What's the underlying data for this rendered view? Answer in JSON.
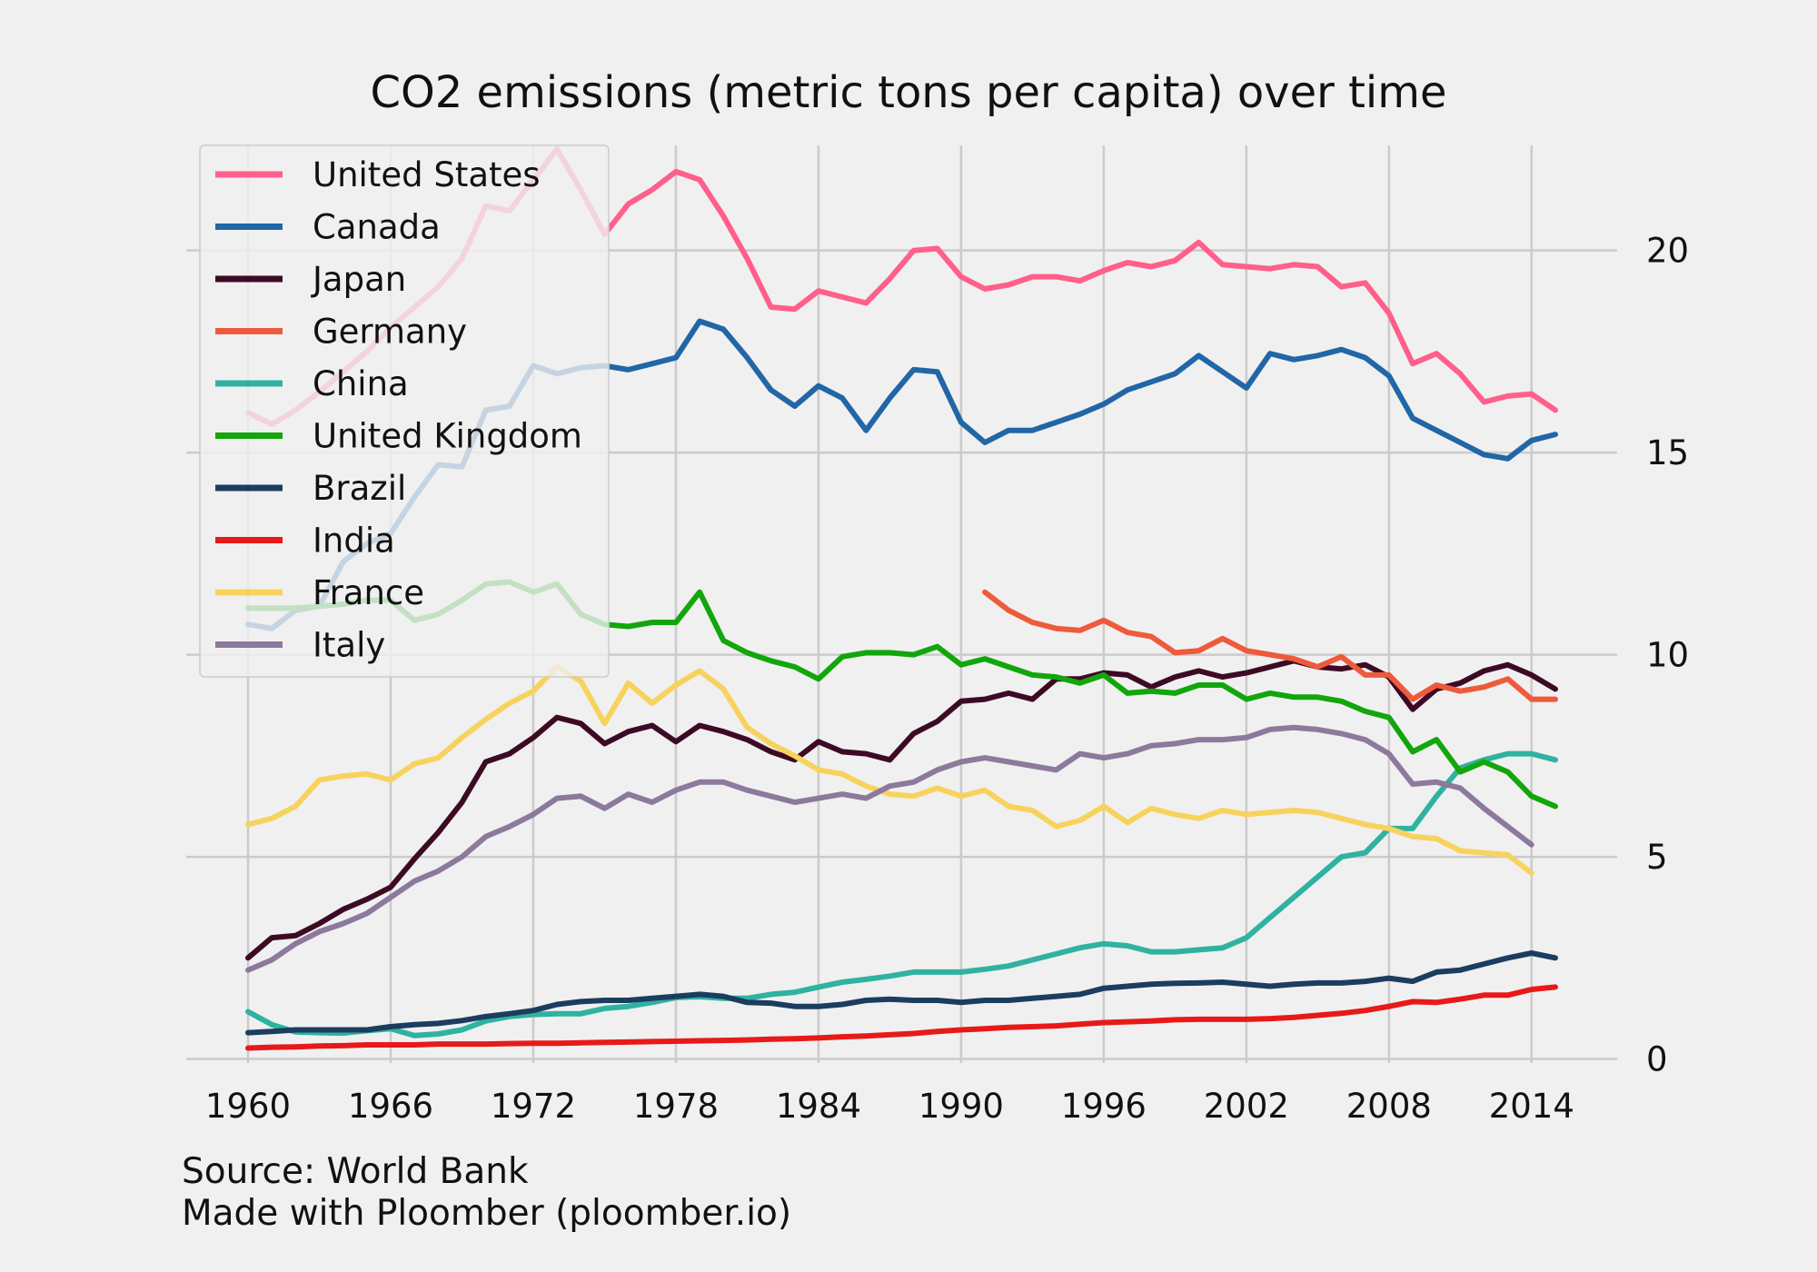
{
  "chart_data": {
    "type": "line",
    "title": "CO2 emissions (metric tons per capita) over time",
    "xlabel": "",
    "ylabel": "",
    "x_ticks": [
      1960,
      1966,
      1972,
      1978,
      1984,
      1990,
      1996,
      2002,
      2008,
      2014
    ],
    "y_ticks": [
      0,
      5,
      10,
      15,
      20
    ],
    "xlim": [
      1957.4,
      2017.6
    ],
    "ylim": [
      -0.1,
      22.6
    ],
    "y_axis_side": "right",
    "grid": true,
    "legend": "upper-left, semi-transparent",
    "series": [
      {
        "name": "United States",
        "color": "#ff5f8a",
        "start": 1960,
        "values": [
          15.99,
          15.7,
          16.05,
          16.5,
          17.0,
          17.5,
          18.1,
          18.6,
          19.1,
          19.8,
          21.1,
          20.98,
          21.75,
          22.5,
          21.5,
          20.4,
          21.15,
          21.5,
          21.95,
          21.75,
          20.85,
          19.8,
          18.6,
          18.55,
          19.0,
          18.85,
          18.7,
          19.3,
          20.0,
          20.05,
          19.35,
          19.05,
          19.15,
          19.35,
          19.35,
          19.25,
          19.5,
          19.7,
          19.6,
          19.75,
          20.2,
          19.65,
          19.6,
          19.55,
          19.65,
          19.6,
          19.1,
          19.2,
          18.45,
          17.2,
          17.45,
          16.95,
          16.25,
          16.4,
          16.45,
          16.05
        ]
      },
      {
        "name": "Canada",
        "color": "#2166a6",
        "start": 1960,
        "values": [
          10.75,
          10.65,
          11.1,
          11.2,
          12.3,
          12.75,
          13.0,
          13.9,
          14.7,
          14.65,
          16.05,
          16.15,
          17.15,
          16.95,
          17.1,
          17.15,
          17.05,
          17.2,
          17.35,
          18.25,
          18.05,
          17.35,
          16.55,
          16.15,
          16.65,
          16.35,
          15.55,
          16.35,
          17.05,
          17.0,
          15.75,
          15.25,
          15.55,
          15.55,
          15.75,
          15.95,
          16.2,
          16.55,
          16.75,
          16.95,
          17.4,
          17.0,
          16.6,
          17.45,
          17.3,
          17.4,
          17.55,
          17.35,
          16.9,
          15.85,
          15.55,
          15.25,
          14.95,
          14.85,
          15.3,
          15.45
        ]
      },
      {
        "name": "Japan",
        "color": "#3d0a24",
        "start": 1960,
        "values": [
          2.5,
          3.0,
          3.05,
          3.35,
          3.7,
          3.95,
          4.25,
          4.95,
          5.6,
          6.35,
          7.35,
          7.55,
          7.95,
          8.45,
          8.3,
          7.8,
          8.1,
          8.25,
          7.85,
          8.25,
          8.1,
          7.9,
          7.6,
          7.4,
          7.85,
          7.6,
          7.55,
          7.4,
          8.05,
          8.35,
          8.85,
          8.9,
          9.05,
          8.9,
          9.4,
          9.4,
          9.55,
          9.5,
          9.2,
          9.45,
          9.6,
          9.45,
          9.55,
          9.7,
          9.85,
          9.7,
          9.65,
          9.75,
          9.45,
          8.65,
          9.15,
          9.3,
          9.6,
          9.75,
          9.5,
          9.15
        ]
      },
      {
        "name": "Germany",
        "color": "#ee5a3c",
        "start": 1991,
        "values": [
          11.55,
          11.1,
          10.8,
          10.65,
          10.6,
          10.85,
          10.55,
          10.45,
          10.05,
          10.1,
          10.4,
          10.1,
          10.0,
          9.9,
          9.7,
          9.95,
          9.5,
          9.5,
          8.9,
          9.25,
          9.1,
          9.2,
          9.4,
          8.9,
          8.9
        ]
      },
      {
        "name": "China",
        "color": "#2fb2a1",
        "start": 1960,
        "values": [
          1.17,
          0.85,
          0.67,
          0.65,
          0.64,
          0.7,
          0.75,
          0.58,
          0.62,
          0.72,
          0.94,
          1.05,
          1.1,
          1.12,
          1.12,
          1.25,
          1.3,
          1.4,
          1.52,
          1.54,
          1.5,
          1.5,
          1.6,
          1.65,
          1.78,
          1.9,
          1.97,
          2.05,
          2.15,
          2.15,
          2.15,
          2.22,
          2.3,
          2.45,
          2.6,
          2.75,
          2.85,
          2.8,
          2.65,
          2.65,
          2.7,
          2.75,
          3.0,
          3.5,
          4.0,
          4.5,
          5.0,
          5.1,
          5.7,
          5.7,
          6.5,
          7.2,
          7.4,
          7.55,
          7.55,
          7.4
        ]
      },
      {
        "name": "United Kingdom",
        "color": "#12a60b",
        "start": 1960,
        "values": [
          11.15,
          11.15,
          11.15,
          11.2,
          11.25,
          11.35,
          11.35,
          10.85,
          11.0,
          11.35,
          11.75,
          11.8,
          11.55,
          11.75,
          11.0,
          10.75,
          10.7,
          10.8,
          10.8,
          11.55,
          10.35,
          10.05,
          9.85,
          9.7,
          9.4,
          9.95,
          10.05,
          10.05,
          10.0,
          10.2,
          9.75,
          9.9,
          9.7,
          9.5,
          9.45,
          9.3,
          9.5,
          9.05,
          9.1,
          9.05,
          9.25,
          9.25,
          8.9,
          9.05,
          8.95,
          8.95,
          8.85,
          8.6,
          8.45,
          7.6,
          7.9,
          7.1,
          7.35,
          7.1,
          6.5,
          6.25
        ]
      },
      {
        "name": "Brazil",
        "color": "#1b3d5f",
        "start": 1960,
        "values": [
          0.65,
          0.68,
          0.72,
          0.72,
          0.72,
          0.72,
          0.8,
          0.85,
          0.88,
          0.95,
          1.05,
          1.12,
          1.2,
          1.35,
          1.42,
          1.45,
          1.45,
          1.5,
          1.55,
          1.6,
          1.55,
          1.4,
          1.38,
          1.3,
          1.3,
          1.35,
          1.45,
          1.48,
          1.45,
          1.45,
          1.4,
          1.45,
          1.45,
          1.5,
          1.55,
          1.6,
          1.75,
          1.8,
          1.85,
          1.87,
          1.88,
          1.9,
          1.85,
          1.8,
          1.85,
          1.88,
          1.88,
          1.92,
          2.0,
          1.92,
          2.15,
          2.2,
          2.35,
          2.5,
          2.62,
          2.5
        ]
      },
      {
        "name": "India",
        "color": "#e81919",
        "start": 1960,
        "values": [
          0.27,
          0.29,
          0.3,
          0.32,
          0.33,
          0.35,
          0.35,
          0.35,
          0.37,
          0.37,
          0.37,
          0.38,
          0.39,
          0.39,
          0.4,
          0.41,
          0.42,
          0.43,
          0.44,
          0.45,
          0.46,
          0.47,
          0.49,
          0.5,
          0.52,
          0.55,
          0.57,
          0.6,
          0.63,
          0.68,
          0.72,
          0.75,
          0.78,
          0.8,
          0.82,
          0.86,
          0.9,
          0.92,
          0.94,
          0.97,
          0.98,
          0.98,
          0.98,
          1.0,
          1.03,
          1.08,
          1.13,
          1.2,
          1.3,
          1.42,
          1.4,
          1.48,
          1.58,
          1.58,
          1.72,
          1.78
        ]
      },
      {
        "name": "France",
        "color": "#f7d35e",
        "start": 1960,
        "values": [
          5.8,
          5.95,
          6.25,
          6.9,
          7.0,
          7.05,
          6.9,
          7.3,
          7.45,
          7.95,
          8.4,
          8.8,
          9.1,
          9.7,
          9.35,
          8.3,
          9.3,
          8.8,
          9.25,
          9.6,
          9.15,
          8.2,
          7.8,
          7.5,
          7.15,
          7.05,
          6.75,
          6.55,
          6.5,
          6.7,
          6.5,
          6.65,
          6.25,
          6.15,
          5.75,
          5.9,
          6.25,
          5.85,
          6.2,
          6.05,
          5.95,
          6.15,
          6.05,
          6.1,
          6.15,
          6.1,
          5.95,
          5.8,
          5.7,
          5.5,
          5.45,
          5.15,
          5.1,
          5.05,
          4.6
        ]
      },
      {
        "name": "Italy",
        "color": "#8c799c",
        "start": 1960,
        "values": [
          2.2,
          2.45,
          2.85,
          3.15,
          3.35,
          3.6,
          4.0,
          4.4,
          4.65,
          5.0,
          5.5,
          5.75,
          6.05,
          6.45,
          6.5,
          6.2,
          6.55,
          6.35,
          6.65,
          6.85,
          6.85,
          6.65,
          6.5,
          6.35,
          6.45,
          6.55,
          6.45,
          6.75,
          6.85,
          7.15,
          7.35,
          7.45,
          7.35,
          7.25,
          7.15,
          7.55,
          7.45,
          7.55,
          7.75,
          7.8,
          7.9,
          7.9,
          7.95,
          8.15,
          8.2,
          8.15,
          8.05,
          7.9,
          7.55,
          6.8,
          6.85,
          6.7,
          6.2,
          5.75,
          5.3
        ]
      }
    ]
  },
  "footer": {
    "source": "Source: World Bank",
    "made_with": "Made with Ploomber (ploomber.io)"
  }
}
